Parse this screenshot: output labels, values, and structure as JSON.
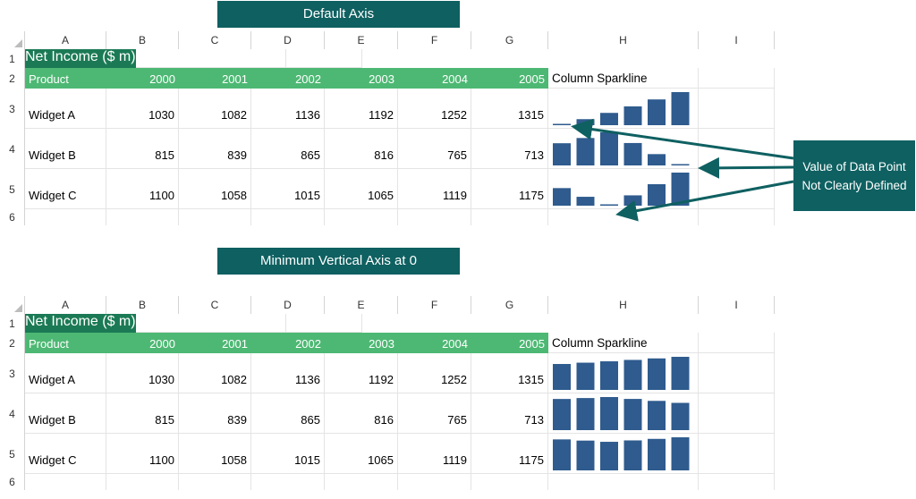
{
  "banners": {
    "top": "Default Axis",
    "bottom": "Minimum Vertical Axis at 0"
  },
  "columns": [
    "A",
    "B",
    "C",
    "D",
    "E",
    "F",
    "G",
    "H",
    "I"
  ],
  "rows": [
    "1",
    "2",
    "3",
    "4",
    "5",
    "6"
  ],
  "table": {
    "title": "Net Income ($ m)",
    "product_header": "Product",
    "years": [
      "2000",
      "2001",
      "2002",
      "2003",
      "2004",
      "2005"
    ],
    "sparkline_header": "Column Sparkline",
    "products": [
      {
        "name": "Widget A",
        "values": [
          "1030",
          "1082",
          "1136",
          "1192",
          "1252",
          "1315"
        ]
      },
      {
        "name": "Widget B",
        "values": [
          "815",
          "839",
          "865",
          "816",
          "765",
          "713"
        ]
      },
      {
        "name": "Widget C",
        "values": [
          "1100",
          "1058",
          "1015",
          "1065",
          "1119",
          "1175"
        ]
      }
    ]
  },
  "callout": {
    "text": "Value of Data Point Not Clearly Defined"
  },
  "colors": {
    "banner": "#0f6061",
    "title_fill": "#1b7a55",
    "header_fill": "#4db873",
    "sparkline": "#2f5b8e",
    "arrow": "#0f6061"
  },
  "sparklines": {
    "top": {
      "axis_min": "auto"
    },
    "bottom": {
      "axis_min": 0
    }
  }
}
